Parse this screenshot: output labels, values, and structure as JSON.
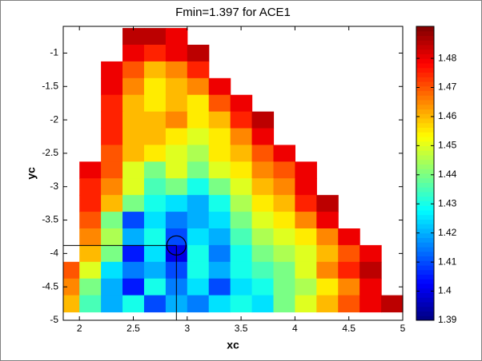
{
  "chart_data": {
    "type": "contourf",
    "title": "Fmin=1.397 for ACE1",
    "x_label": "xc",
    "y_label": "yc",
    "colormap": "jet",
    "x": [
      1.9,
      2.1,
      2.3,
      2.5,
      2.7,
      2.9,
      3.1,
      3.3,
      3.5,
      3.7,
      3.9,
      4.1,
      4.3,
      4.5,
      4.7,
      4.9
    ],
    "y": [
      -0.75,
      -1,
      -1.25,
      -1.5,
      -1.75,
      -2,
      -2.25,
      -2.5,
      -2.75,
      -3,
      -3.25,
      -3.5,
      -3.75,
      -4,
      -4.25,
      -4.5,
      -4.75
    ],
    "z": [
      [
        null,
        null,
        null,
        1.485,
        1.485,
        1.48,
        null,
        null,
        null,
        null,
        null,
        null,
        null,
        null,
        null,
        null
      ],
      [
        null,
        null,
        null,
        1.48,
        1.475,
        1.48,
        1.485,
        null,
        null,
        null,
        null,
        null,
        null,
        null,
        null,
        null
      ],
      [
        null,
        null,
        1.48,
        1.47,
        1.46,
        1.465,
        1.475,
        null,
        null,
        null,
        null,
        null,
        null,
        null,
        null,
        null
      ],
      [
        null,
        null,
        1.48,
        1.465,
        1.455,
        1.46,
        1.465,
        1.48,
        null,
        null,
        null,
        null,
        null,
        null,
        null,
        null
      ],
      [
        null,
        null,
        1.475,
        1.46,
        1.455,
        1.46,
        1.455,
        1.47,
        1.48,
        null,
        null,
        null,
        null,
        null,
        null,
        null
      ],
      [
        null,
        null,
        1.475,
        1.46,
        1.46,
        1.465,
        1.455,
        1.46,
        1.475,
        1.485,
        null,
        null,
        null,
        null,
        null,
        null
      ],
      [
        null,
        null,
        1.475,
        1.46,
        1.46,
        1.455,
        1.45,
        1.455,
        1.465,
        1.48,
        null,
        null,
        null,
        null,
        null,
        null
      ],
      [
        null,
        null,
        1.47,
        1.46,
        1.455,
        1.45,
        1.445,
        1.455,
        1.46,
        1.47,
        1.48,
        null,
        null,
        null,
        null,
        null
      ],
      [
        null,
        1.48,
        1.47,
        1.45,
        1.44,
        1.45,
        1.44,
        1.45,
        1.455,
        1.465,
        1.47,
        1.48,
        null,
        null,
        null,
        null
      ],
      [
        null,
        1.475,
        1.465,
        1.45,
        1.435,
        1.44,
        1.43,
        1.44,
        1.45,
        1.46,
        1.465,
        1.48,
        null,
        null,
        null,
        null
      ],
      [
        null,
        1.475,
        1.46,
        1.44,
        1.43,
        1.425,
        1.42,
        1.43,
        1.445,
        1.455,
        1.46,
        1.475,
        1.485,
        null,
        null,
        null
      ],
      [
        null,
        1.47,
        1.44,
        1.41,
        1.425,
        1.415,
        1.42,
        1.425,
        1.44,
        1.45,
        1.455,
        1.465,
        1.48,
        null,
        null,
        null
      ],
      [
        null,
        1.465,
        1.445,
        1.42,
        1.43,
        1.41,
        1.425,
        1.42,
        1.435,
        1.445,
        1.45,
        1.455,
        1.465,
        1.48,
        null,
        null
      ],
      [
        null,
        1.46,
        1.44,
        1.405,
        1.425,
        1.4,
        1.43,
        1.415,
        1.43,
        1.44,
        1.445,
        1.45,
        1.46,
        1.47,
        1.48,
        null
      ],
      [
        1.47,
        1.45,
        1.425,
        1.415,
        1.42,
        1.41,
        1.43,
        1.42,
        1.43,
        1.435,
        1.44,
        1.45,
        1.465,
        1.475,
        1.485,
        null
      ],
      [
        1.465,
        1.44,
        1.42,
        1.405,
        1.43,
        1.415,
        1.425,
        1.41,
        1.425,
        1.43,
        1.44,
        1.445,
        1.455,
        1.465,
        1.48,
        null
      ],
      [
        1.46,
        1.435,
        1.42,
        1.43,
        1.41,
        1.42,
        1.415,
        1.425,
        1.43,
        1.425,
        1.44,
        1.45,
        1.46,
        1.47,
        1.48,
        1.485
      ]
    ],
    "min_point": {
      "x": 2.9,
      "y": -3.88
    },
    "xlim": [
      1.85,
      5
    ],
    "xticks": [
      2,
      2.5,
      3,
      3.5,
      4,
      4.5,
      5
    ],
    "ylim": [
      -5,
      -0.6
    ],
    "yticks": [
      -5,
      -4.5,
      -4,
      -3.5,
      -3,
      -2.5,
      -2,
      -1.5,
      -1
    ],
    "clim": [
      1.39,
      1.491
    ],
    "cticks": [
      1.39,
      1.4,
      1.41,
      1.42,
      1.43,
      1.44,
      1.45,
      1.46,
      1.47,
      1.48
    ]
  }
}
